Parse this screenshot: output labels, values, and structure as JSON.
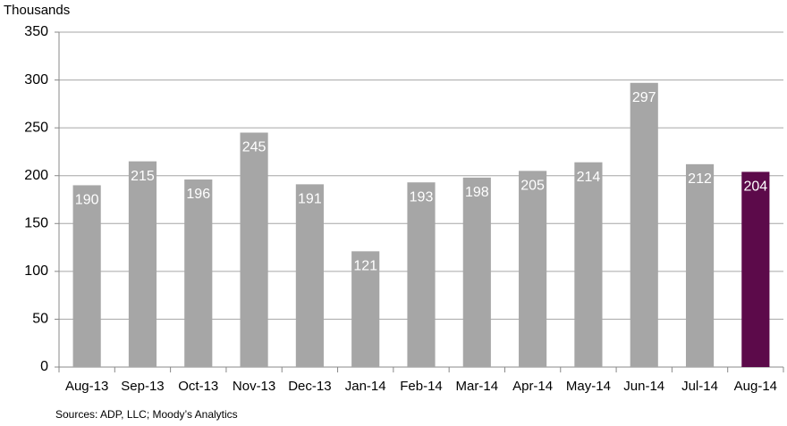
{
  "chart_data": {
    "type": "bar",
    "y_label": "Thousands",
    "source": "Sources: ADP, LLC; Moody’s Analytics",
    "categories": [
      "Aug-13",
      "Sep-13",
      "Oct-13",
      "Nov-13",
      "Dec-13",
      "Jan-14",
      "Feb-14",
      "Mar-14",
      "Apr-14",
      "May-14",
      "Jun-14",
      "Jul-14",
      "Aug-14"
    ],
    "values": [
      190,
      215,
      196,
      245,
      191,
      121,
      193,
      198,
      205,
      214,
      297,
      212,
      204
    ],
    "colors": [
      "#a6a6a6",
      "#a6a6a6",
      "#a6a6a6",
      "#a6a6a6",
      "#a6a6a6",
      "#a6a6a6",
      "#a6a6a6",
      "#a6a6a6",
      "#a6a6a6",
      "#a6a6a6",
      "#a6a6a6",
      "#a6a6a6",
      "#5c0a4a"
    ],
    "ylim": [
      0,
      350
    ],
    "yticks": [
      0,
      50,
      100,
      150,
      200,
      250,
      300,
      350
    ],
    "grid": true
  }
}
